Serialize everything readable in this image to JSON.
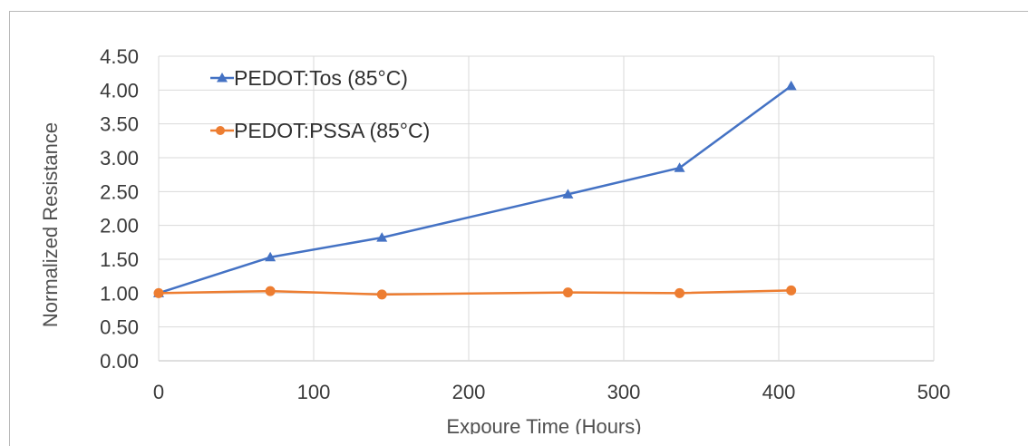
{
  "chart_data": {
    "type": "line",
    "title": "",
    "xlabel": "Expoure  Time (Hours)",
    "ylabel": "Normalized Resistance",
    "xlim": [
      0,
      500
    ],
    "ylim": [
      0,
      4.5
    ],
    "x_ticks": [
      "0",
      "100",
      "200",
      "300",
      "400",
      "500"
    ],
    "y_ticks": [
      "0.00",
      "0.50",
      "1.00",
      "1.50",
      "2.00",
      "2.50",
      "3.00",
      "3.50",
      "4.00",
      "4.50"
    ],
    "grid": true,
    "legend_position": "top-left",
    "series": [
      {
        "name": "PEDOT:Tos (85°C)",
        "color": "#4472c4",
        "marker": "triangle",
        "x": [
          0,
          72,
          144,
          264,
          336,
          408
        ],
        "y": [
          1.0,
          1.53,
          1.82,
          2.46,
          2.85,
          4.06
        ]
      },
      {
        "name": "PEDOT:PSSA (85°C)",
        "color": "#ed7d31",
        "marker": "circle",
        "x": [
          0,
          72,
          144,
          264,
          336,
          408
        ],
        "y": [
          1.0,
          1.03,
          0.98,
          1.01,
          1.0,
          1.04
        ]
      }
    ]
  }
}
